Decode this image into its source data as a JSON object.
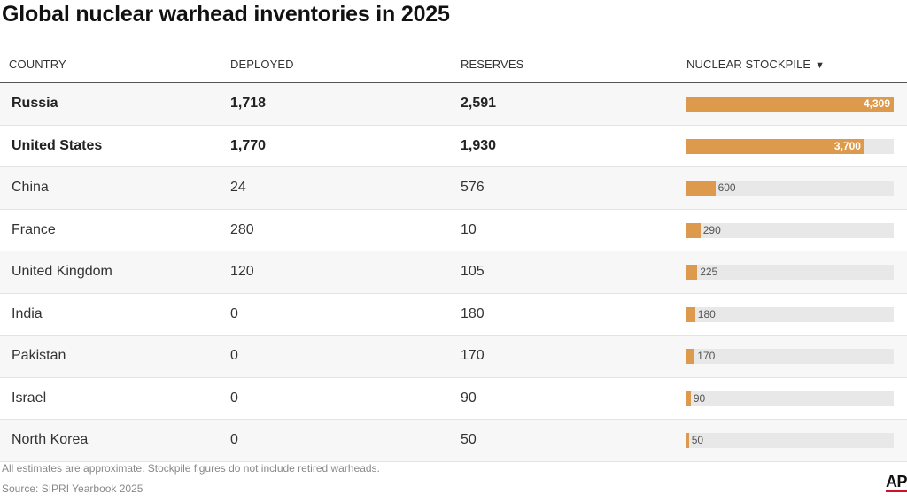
{
  "title": "Global nuclear warhead inventories in 2025",
  "headers": {
    "country": "COUNTRY",
    "deployed": "DEPLOYED",
    "reserves": "RESERVES",
    "stockpile": "NUCLEAR STOCKPILE",
    "sort_indicator": "▼"
  },
  "footnote": "All estimates are approximate. Stockpile figures do not include retired warheads.",
  "source": "Source: SIPRI Yearbook 2025",
  "logo_text": "AP",
  "colors": {
    "bar": "#dd9a4c",
    "track": "#e8e8e8",
    "logo_accent": "#d0112b"
  },
  "chart_data": {
    "type": "table",
    "columns": [
      "COUNTRY",
      "DEPLOYED",
      "RESERVES",
      "NUCLEAR STOCKPILE"
    ],
    "bar_max": 4309,
    "rows": [
      {
        "country": "Russia",
        "deployed": "1,718",
        "reserves": "2,591",
        "stockpile": 4309,
        "stockpile_label": "4,309",
        "bold": true
      },
      {
        "country": "United States",
        "deployed": "1,770",
        "reserves": "1,930",
        "stockpile": 3700,
        "stockpile_label": "3,700",
        "bold": true
      },
      {
        "country": "China",
        "deployed": "24",
        "reserves": "576",
        "stockpile": 600,
        "stockpile_label": "600",
        "bold": false
      },
      {
        "country": "France",
        "deployed": "280",
        "reserves": "10",
        "stockpile": 290,
        "stockpile_label": "290",
        "bold": false
      },
      {
        "country": "United Kingdom",
        "deployed": "120",
        "reserves": "105",
        "stockpile": 225,
        "stockpile_label": "225",
        "bold": false
      },
      {
        "country": "India",
        "deployed": "0",
        "reserves": "180",
        "stockpile": 180,
        "stockpile_label": "180",
        "bold": false
      },
      {
        "country": "Pakistan",
        "deployed": "0",
        "reserves": "170",
        "stockpile": 170,
        "stockpile_label": "170",
        "bold": false
      },
      {
        "country": "Israel",
        "deployed": "0",
        "reserves": "90",
        "stockpile": 90,
        "stockpile_label": "90",
        "bold": false
      },
      {
        "country": "North Korea",
        "deployed": "0",
        "reserves": "50",
        "stockpile": 50,
        "stockpile_label": "50",
        "bold": false
      }
    ]
  }
}
